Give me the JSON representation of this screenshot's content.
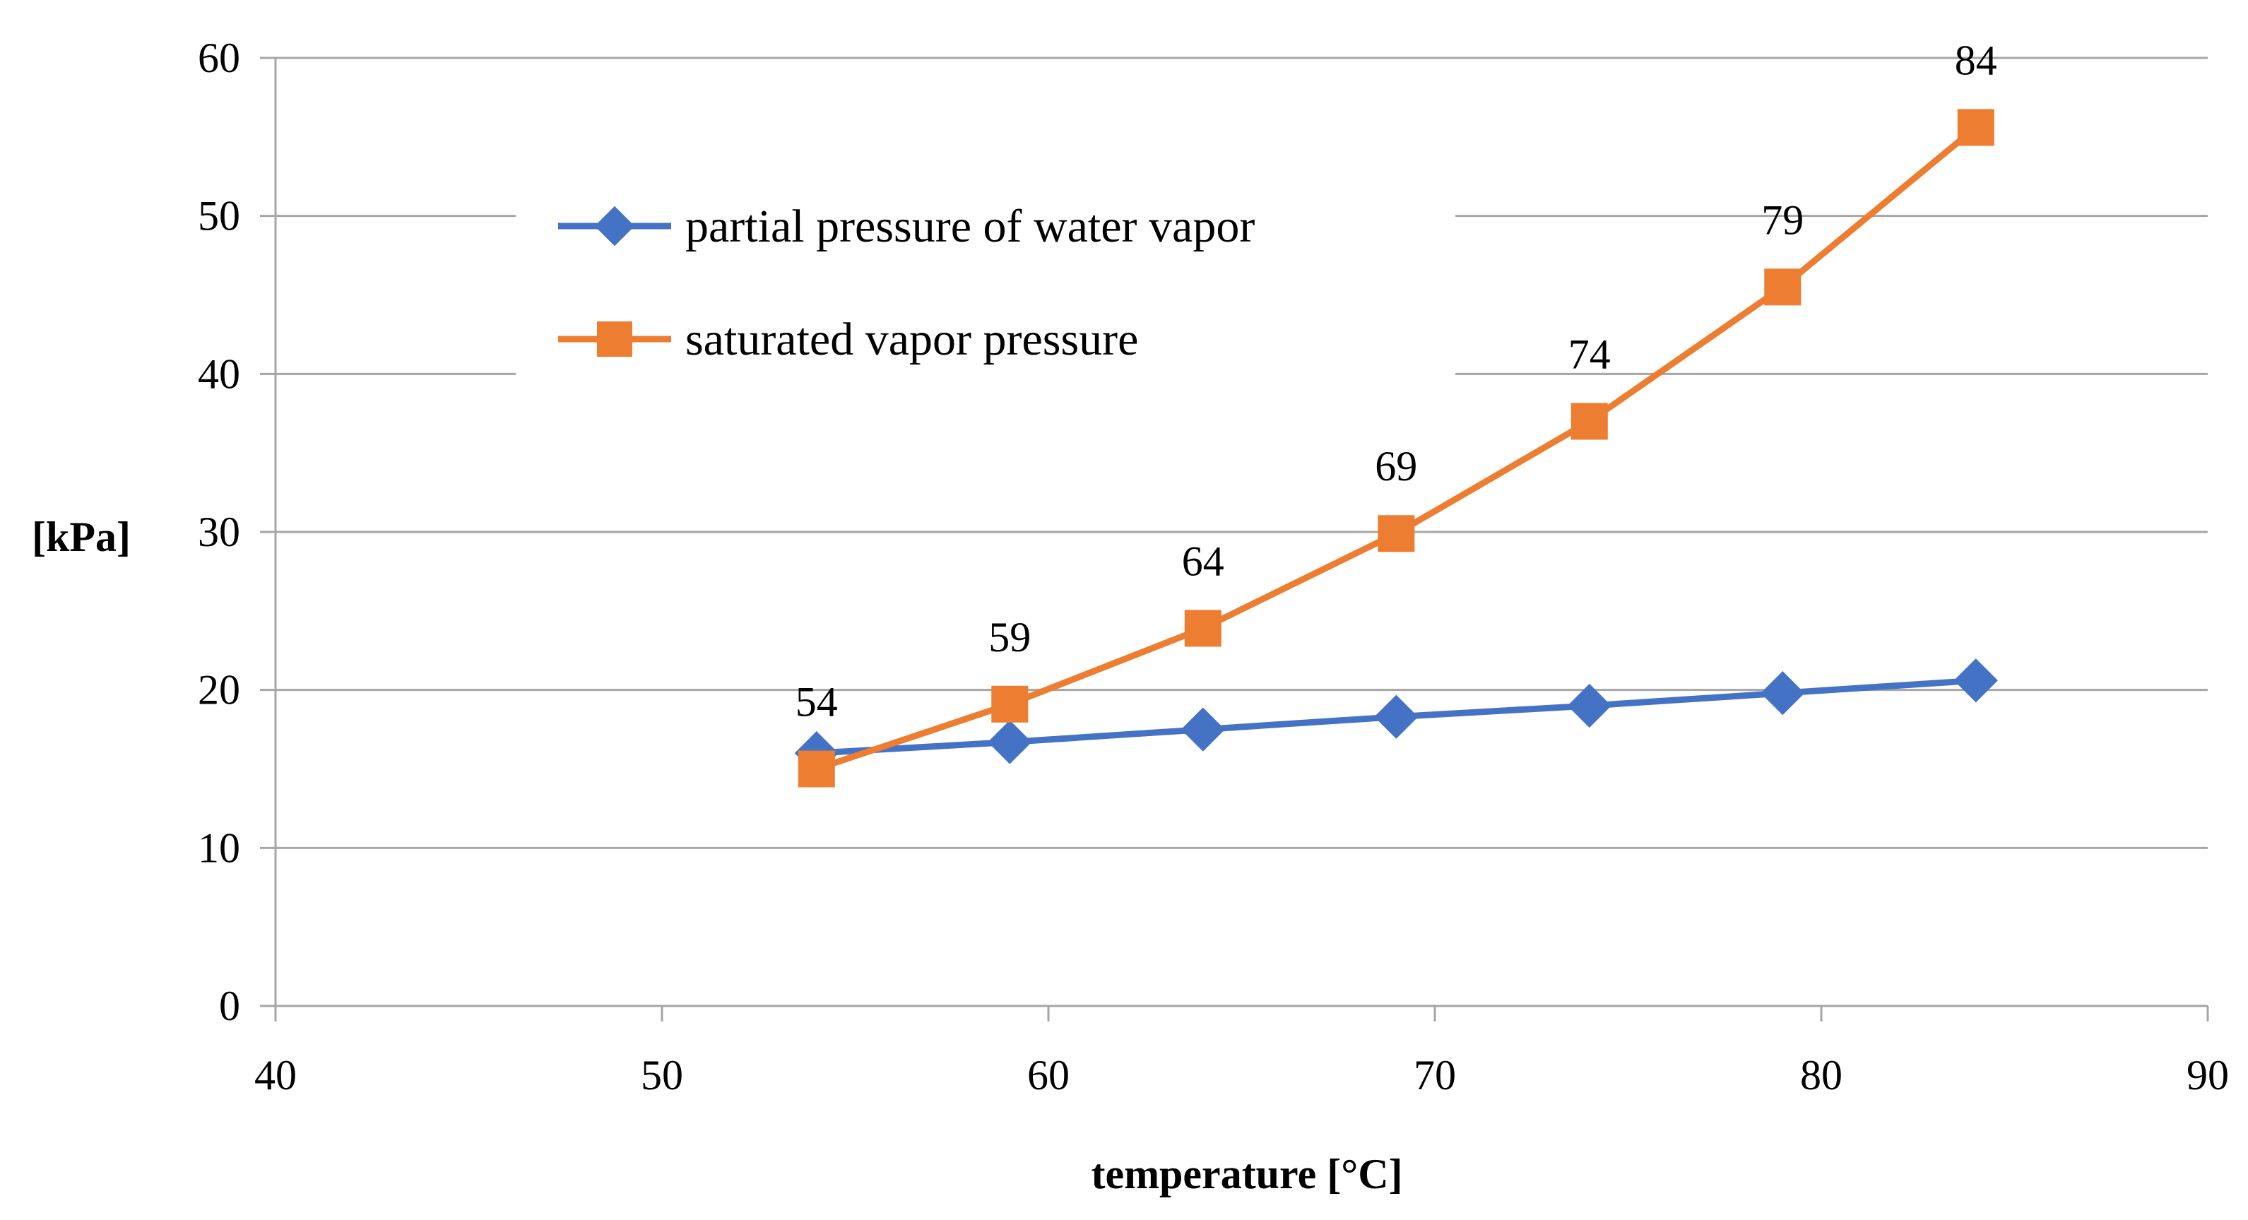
{
  "chart_data": {
    "type": "scatter",
    "title": "",
    "xlabel": "temperature [°C]",
    "ylabel": "[kPa]",
    "xlim": [
      40,
      90
    ],
    "ylim": [
      0,
      60
    ],
    "xticks": [
      40,
      50,
      60,
      70,
      80,
      90
    ],
    "yticks": [
      0,
      10,
      20,
      30,
      40,
      50,
      60
    ],
    "grid": "horizontal",
    "legend_position": "top-left",
    "x": [
      54,
      59,
      64,
      69,
      74,
      79,
      84
    ],
    "series": [
      {
        "name": "partial pressure of water vapor",
        "color": "#4472C4",
        "marker": "diamond",
        "values": [
          16.0,
          16.7,
          17.5,
          18.3,
          19.0,
          19.8,
          20.6
        ]
      },
      {
        "name": "saturated vapor pressure",
        "color": "#ED7D31",
        "marker": "square",
        "values": [
          15.0,
          19.1,
          23.9,
          29.9,
          37.0,
          45.5,
          55.6
        ]
      }
    ],
    "data_labels": {
      "series": "saturated vapor pressure",
      "texts": [
        "54",
        "59",
        "64",
        "69",
        "74",
        "79",
        "84"
      ]
    }
  }
}
